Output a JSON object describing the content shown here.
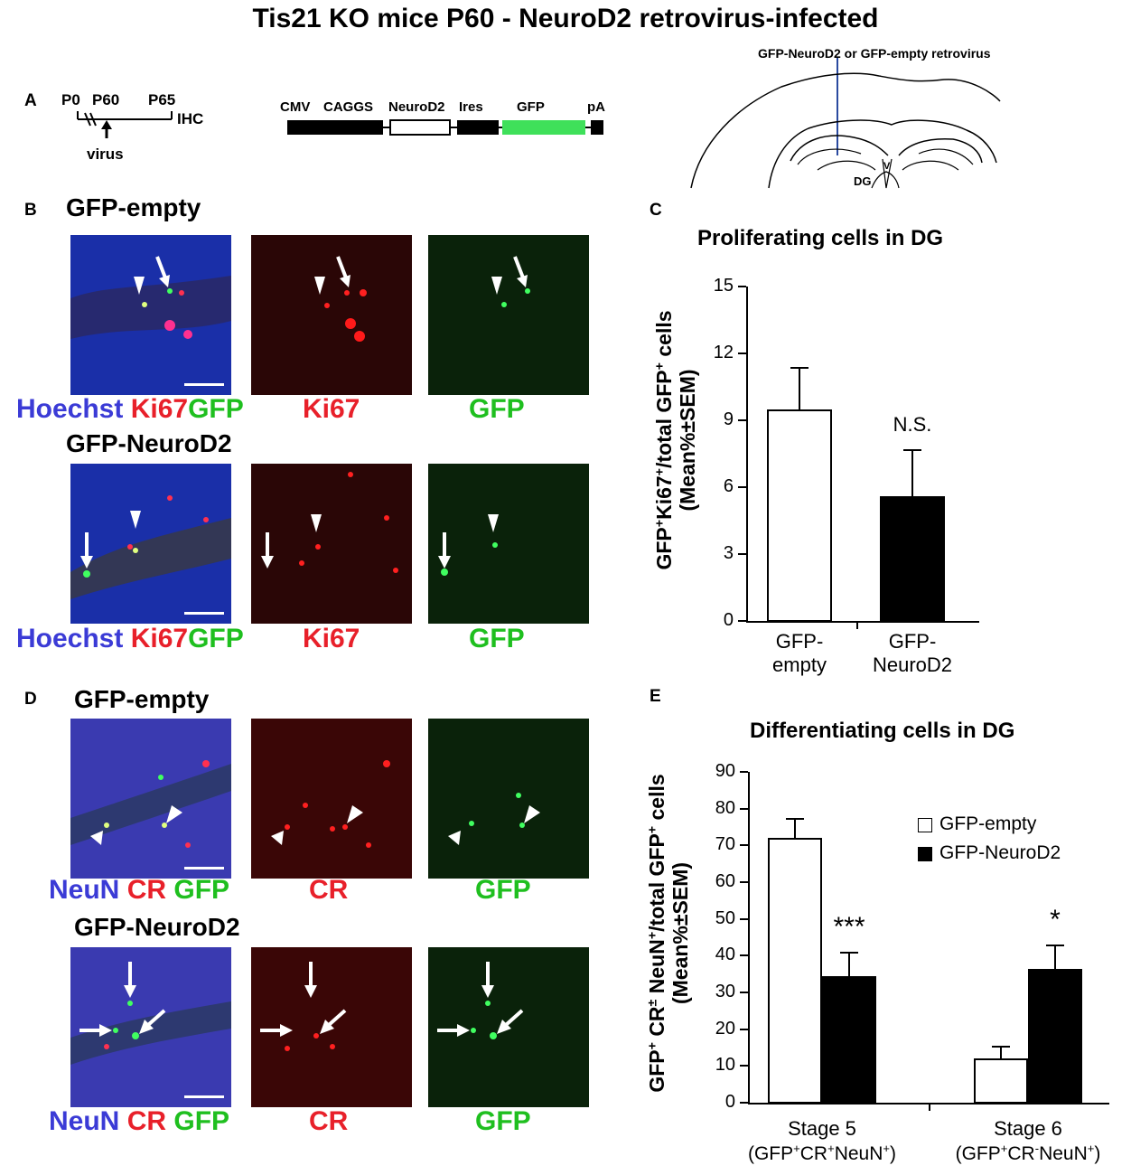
{
  "figure": {
    "title": "Tis21 KO mice P60 - NeuroD2 retrovirus-infected",
    "panel_labels": {
      "A": "A",
      "B": "B",
      "C": "C",
      "D": "D",
      "E": "E"
    }
  },
  "timeline": {
    "p0": "P0",
    "p60": "P60",
    "p65": "P65",
    "ihc": "IHC",
    "virus": "virus"
  },
  "construct": {
    "cmv": "CMV",
    "caggs": "CAGGS",
    "neurod2": "NeuroD2",
    "ires": "Ires",
    "gfp": "GFP",
    "pa": "pA",
    "gfp_color": "#3fe05a"
  },
  "brain": {
    "injection_label": "GFP-NeuroD2 or GFP-empty retrovirus",
    "dg": "DG",
    "v": "V"
  },
  "panel_b": {
    "cond1": "GFP-empty",
    "cond2": "GFP-NeuroD2",
    "labels": {
      "hoechst": "Hoechst",
      "ki67": "Ki67",
      "gfp": "GFP"
    }
  },
  "panel_d": {
    "cond1": "GFP-empty",
    "cond2": "GFP-NeuroD2",
    "labels": {
      "neun": "NeuN",
      "cr": "CR",
      "gfp": "GFP"
    }
  },
  "chart_data": [
    {
      "type": "bar",
      "title": "Proliferating cells in DG",
      "ylabel_line1": "GFP+Ki67+/total GFP+ cells",
      "ylabel_line2": "(Mean%±SEM)",
      "ylim": [
        0,
        15
      ],
      "yticks": [
        0,
        3,
        6,
        9,
        12,
        15
      ],
      "categories": [
        "GFP-\nempty",
        "GFP-\nNeuroD2"
      ],
      "category_lines": [
        [
          "GFP-",
          "empty"
        ],
        [
          "GFP-",
          "NeuroD2"
        ]
      ],
      "values": [
        9.5,
        5.6
      ],
      "errors": [
        1.9,
        2.1
      ],
      "fills": [
        "#ffffff",
        "#000000"
      ],
      "annotations": [
        "",
        "N.S."
      ]
    },
    {
      "type": "bar",
      "title": "Differentiating cells in DG",
      "ylabel_line1": "GFP+ CR± NeuN+/total GFP+ cells",
      "ylabel_line2": "(Mean%±SEM)",
      "ylim": [
        0,
        90
      ],
      "yticks": [
        0,
        10,
        20,
        30,
        40,
        50,
        60,
        70,
        80,
        90
      ],
      "categories": [
        "Stage 5",
        "Stage 6"
      ],
      "category_sub": [
        "(GFP+CR+NeuN+)",
        "(GFP+CR-NeuN+)"
      ],
      "series": [
        {
          "name": "GFP-empty",
          "values": [
            72,
            12
          ],
          "errors": [
            5.5,
            3.5
          ],
          "fill": "#ffffff"
        },
        {
          "name": "GFP-NeuroD2",
          "values": [
            34.5,
            36.5
          ],
          "errors": [
            6.5,
            6.5
          ],
          "fill": "#000000"
        }
      ],
      "annotations": [
        "***",
        "*"
      ],
      "legend": "top-right"
    }
  ]
}
